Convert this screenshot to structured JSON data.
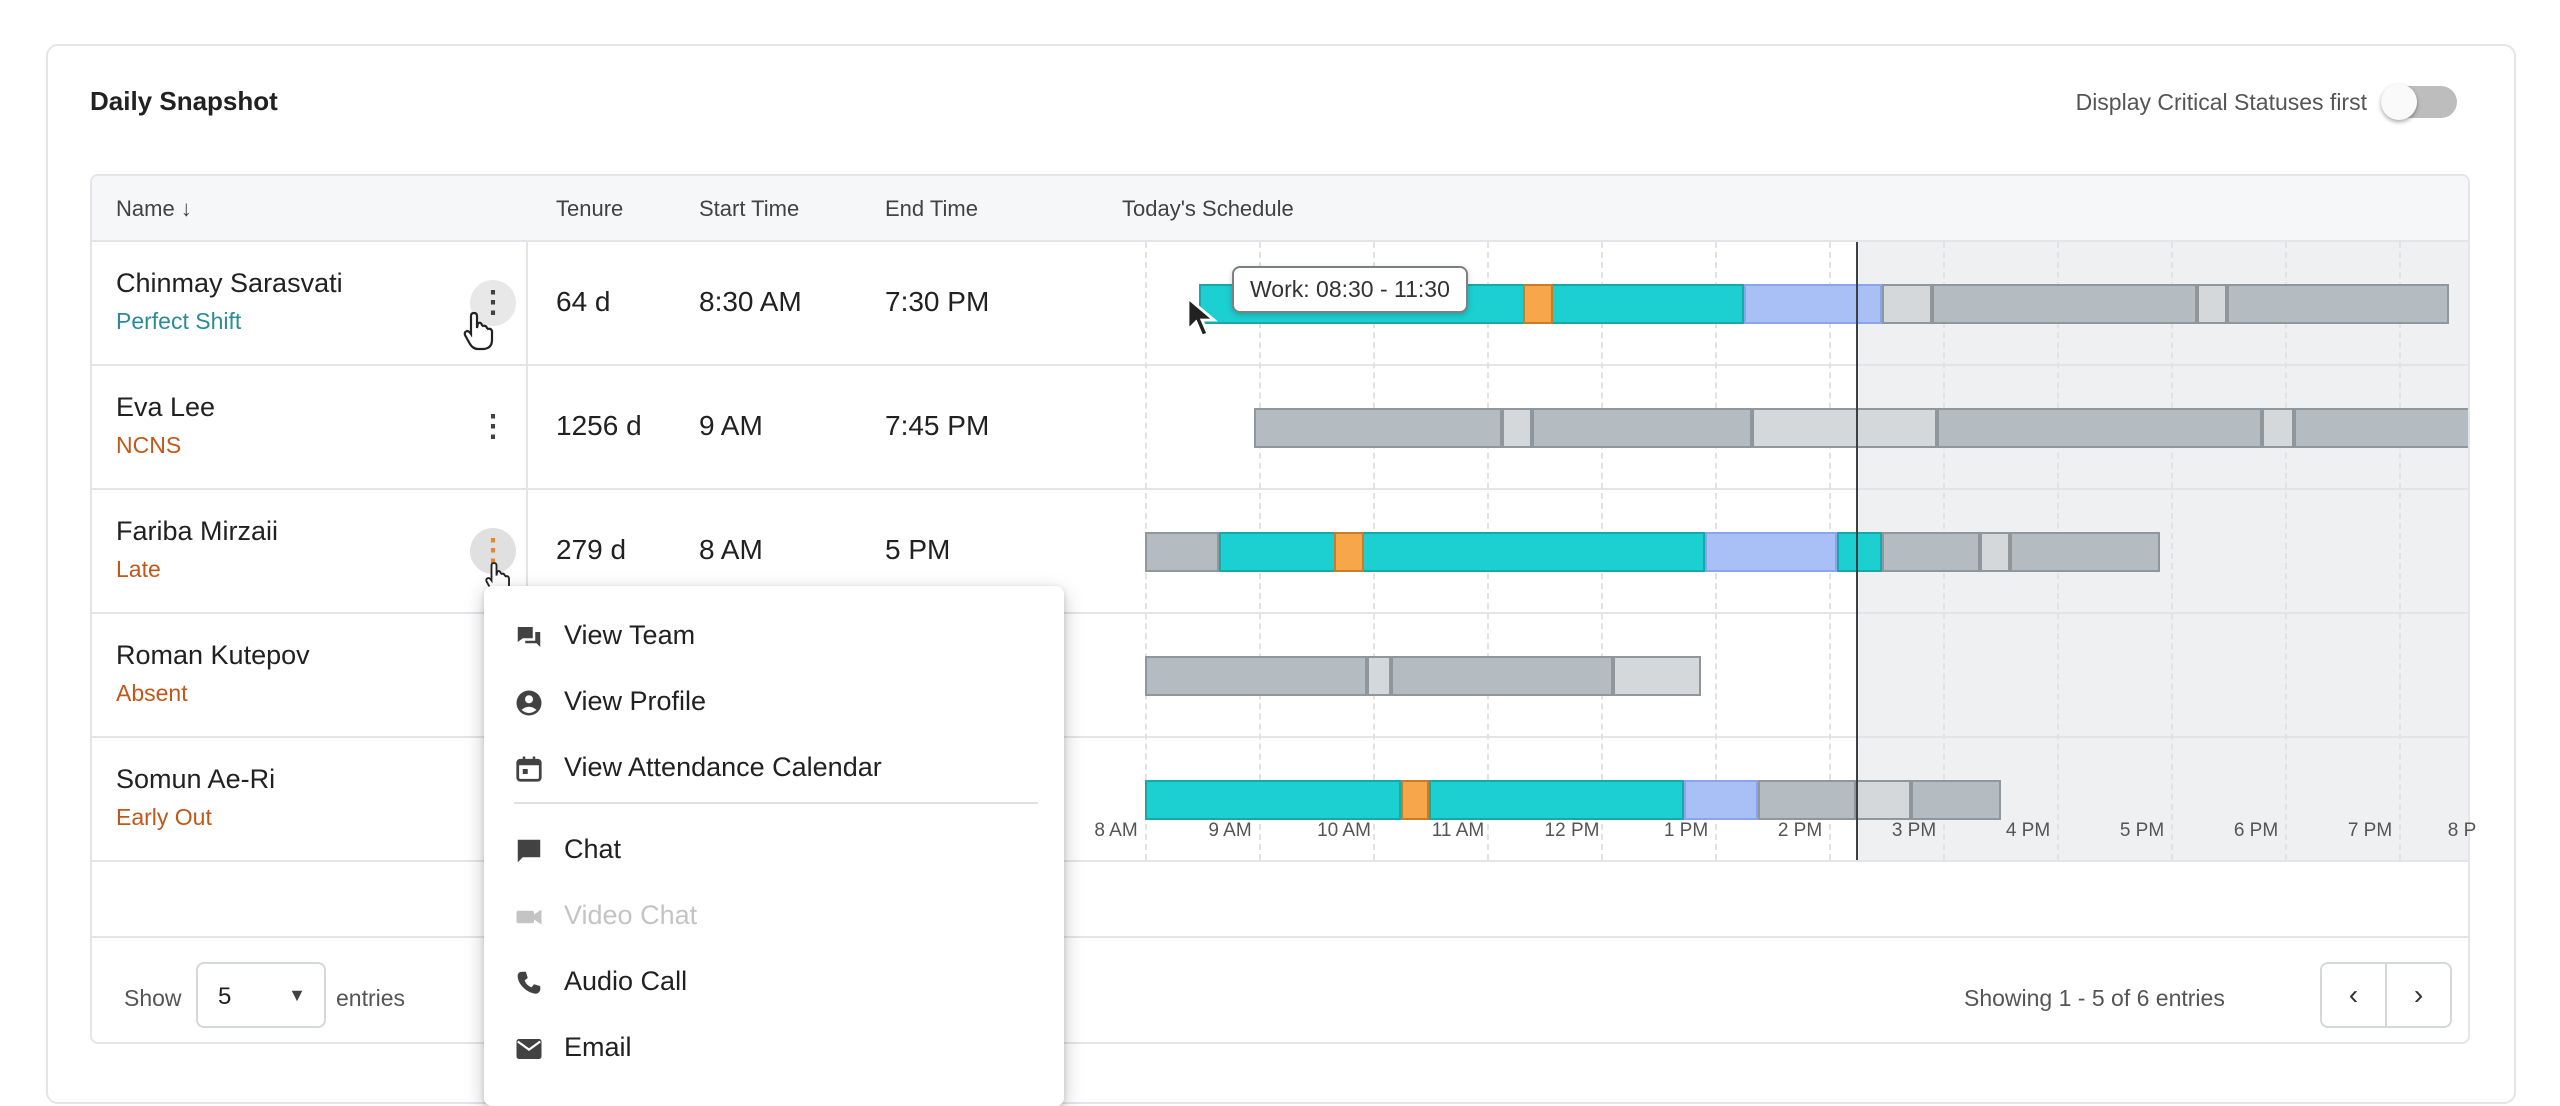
{
  "card": {
    "title": "Daily Snapshot",
    "critical_toggle_label": "Display Critical Statuses first",
    "critical_toggle_on": false
  },
  "table": {
    "headers": {
      "name": "Name ↓",
      "tenure": "Tenure",
      "start": "Start Time",
      "end": "End Time",
      "schedule": "Today's Schedule"
    },
    "rows": [
      {
        "name": "Chinmay Sarasvati",
        "status": "Perfect Shift",
        "status_color": "#2a8c97",
        "tenure": "64 d",
        "start": "8:30 AM",
        "end": "7:30 PM"
      },
      {
        "name": "Eva Lee",
        "status": "NCNS",
        "status_color": "#c2571a",
        "tenure": "1256 d",
        "start": "9 AM",
        "end": "7:45 PM"
      },
      {
        "name": "Fariba Mirzaii",
        "status": "Late",
        "status_color": "#c2571a",
        "tenure": "279 d",
        "start": "8 AM",
        "end": "5 PM"
      },
      {
        "name": "Roman Kutepov",
        "status": "Absent",
        "status_color": "#c2571a",
        "tenure": "",
        "start": "",
        "end": ""
      },
      {
        "name": "Somun Ae-Ri",
        "status": "Early Out",
        "status_color": "#c2571a",
        "tenure": "",
        "start": "",
        "end": ""
      }
    ],
    "time_axis": [
      "8 AM",
      "9 AM",
      "10 AM",
      "11 AM",
      "12 PM",
      "1 PM",
      "2 PM",
      "3 PM",
      "4 PM",
      "5 PM",
      "6 PM",
      "7 PM",
      "8 P"
    ],
    "tooltip": "Work: 08:30 - 11:30",
    "footer": {
      "show_label": "Show",
      "entries_value": "5",
      "entries_label": "entries",
      "showing_text": "Showing 1 - 5 of 6 entries",
      "prev_glyph": "‹",
      "next_glyph": "›"
    }
  },
  "context_menu": {
    "items": [
      {
        "label": "View Team",
        "icon": "forum-icon",
        "disabled": false
      },
      {
        "label": "View Profile",
        "icon": "account-circle-icon",
        "disabled": false
      },
      {
        "label": "View Attendance Calendar",
        "icon": "calendar-icon",
        "disabled": false
      },
      {
        "label": "Chat",
        "icon": "chat-icon",
        "disabled": false
      },
      {
        "label": "Video Chat",
        "icon": "videocam-icon",
        "disabled": true
      },
      {
        "label": "Audio Call",
        "icon": "phone-icon",
        "disabled": false
      },
      {
        "label": "Email",
        "icon": "email-icon",
        "disabled": false
      }
    ]
  },
  "colors": {
    "work": "#1ccfd0",
    "break": "#f7a64a",
    "overtime": "#a9c0f7",
    "scheduled": "#b4bbc1",
    "scheduled_light": "#d4d8db"
  }
}
